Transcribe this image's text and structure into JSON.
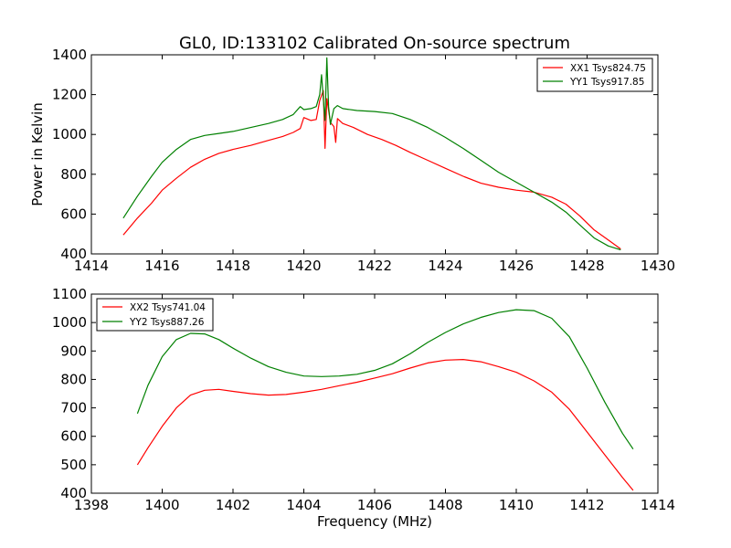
{
  "chart_data": [
    {
      "type": "line",
      "title": "GL0, ID:133102 Calibrated On-source spectrum",
      "xlabel": "",
      "ylabel": "Power in Kelvin",
      "xlim": [
        1414,
        1430
      ],
      "ylim": [
        400,
        1400
      ],
      "xticks": [
        1414,
        1416,
        1418,
        1420,
        1422,
        1424,
        1426,
        1428,
        1430
      ],
      "yticks": [
        400,
        600,
        800,
        1000,
        1200,
        1400
      ],
      "legend_position": "top-right",
      "grid": false,
      "series": [
        {
          "name": "XX1 Tsys824.75",
          "color": "#ff0000",
          "x": [
            1414.9,
            1415.3,
            1415.7,
            1416.0,
            1416.4,
            1416.8,
            1417.2,
            1417.6,
            1418.0,
            1418.5,
            1419.0,
            1419.4,
            1419.7,
            1419.9,
            1420.0,
            1420.2,
            1420.35,
            1420.45,
            1420.55,
            1420.6,
            1420.65,
            1420.75,
            1420.85,
            1420.9,
            1420.95,
            1421.1,
            1421.4,
            1421.8,
            1422.2,
            1422.6,
            1423.0,
            1423.5,
            1424.0,
            1424.5,
            1425.0,
            1425.5,
            1426.0,
            1426.5,
            1427.0,
            1427.4,
            1427.8,
            1428.2,
            1428.6,
            1428.95
          ],
          "y": [
            495,
            580,
            655,
            720,
            780,
            835,
            875,
            905,
            925,
            945,
            970,
            990,
            1010,
            1030,
            1085,
            1070,
            1075,
            1170,
            1220,
            930,
            1180,
            1060,
            1040,
            960,
            1080,
            1055,
            1035,
            1000,
            975,
            945,
            910,
            870,
            830,
            790,
            755,
            735,
            720,
            710,
            685,
            650,
            590,
            520,
            470,
            425
          ]
        },
        {
          "name": "YY1 Tsys917.85",
          "color": "#008000",
          "x": [
            1414.9,
            1415.3,
            1415.7,
            1416.0,
            1416.4,
            1416.8,
            1417.2,
            1417.6,
            1418.0,
            1418.5,
            1419.0,
            1419.4,
            1419.7,
            1419.9,
            1420.0,
            1420.2,
            1420.35,
            1420.45,
            1420.5,
            1420.55,
            1420.6,
            1420.65,
            1420.7,
            1420.75,
            1420.85,
            1420.95,
            1421.1,
            1421.5,
            1422.0,
            1422.5,
            1423.0,
            1423.5,
            1424.0,
            1424.5,
            1425.0,
            1425.5,
            1426.0,
            1426.5,
            1427.0,
            1427.4,
            1427.8,
            1428.2,
            1428.6,
            1428.95
          ],
          "y": [
            580,
            690,
            790,
            860,
            925,
            975,
            995,
            1005,
            1015,
            1035,
            1055,
            1075,
            1100,
            1140,
            1125,
            1130,
            1140,
            1200,
            1300,
            1180,
            1070,
            1385,
            1140,
            1050,
            1130,
            1145,
            1130,
            1120,
            1115,
            1105,
            1075,
            1035,
            985,
            930,
            870,
            810,
            760,
            710,
            660,
            610,
            545,
            480,
            440,
            420
          ]
        }
      ]
    },
    {
      "type": "line",
      "title": "",
      "xlabel": "Frequency (MHz)",
      "ylabel": "",
      "xlim": [
        1398,
        1414
      ],
      "ylim": [
        400,
        1100
      ],
      "xticks": [
        1398,
        1400,
        1402,
        1404,
        1406,
        1408,
        1410,
        1412,
        1414
      ],
      "yticks": [
        400,
        500,
        600,
        700,
        800,
        900,
        1000,
        1100
      ],
      "legend_position": "top-left",
      "grid": false,
      "series": [
        {
          "name": "XX2 Tsys741.04",
          "color": "#ff0000",
          "x": [
            1399.3,
            1399.6,
            1400.0,
            1400.4,
            1400.8,
            1401.2,
            1401.6,
            1402.0,
            1402.5,
            1403.0,
            1403.5,
            1404.0,
            1404.5,
            1405.0,
            1405.5,
            1406.0,
            1406.5,
            1407.0,
            1407.5,
            1408.0,
            1408.5,
            1409.0,
            1409.5,
            1410.0,
            1410.5,
            1411.0,
            1411.5,
            1412.0,
            1412.5,
            1413.0,
            1413.3
          ],
          "y": [
            500,
            560,
            635,
            700,
            745,
            762,
            765,
            758,
            750,
            745,
            747,
            755,
            765,
            778,
            790,
            805,
            820,
            840,
            858,
            868,
            870,
            862,
            845,
            825,
            795,
            755,
            695,
            615,
            535,
            455,
            410
          ]
        },
        {
          "name": "YY2 Tsys887.26",
          "color": "#008000",
          "x": [
            1399.3,
            1399.6,
            1400.0,
            1400.4,
            1400.8,
            1401.2,
            1401.6,
            1402.0,
            1402.5,
            1403.0,
            1403.5,
            1404.0,
            1404.5,
            1405.0,
            1405.5,
            1406.0,
            1406.5,
            1407.0,
            1407.5,
            1408.0,
            1408.5,
            1409.0,
            1409.5,
            1410.0,
            1410.5,
            1411.0,
            1411.5,
            1412.0,
            1412.5,
            1413.0,
            1413.3
          ],
          "y": [
            680,
            780,
            880,
            940,
            962,
            960,
            940,
            910,
            875,
            845,
            825,
            812,
            810,
            812,
            818,
            832,
            855,
            890,
            930,
            965,
            995,
            1018,
            1035,
            1045,
            1042,
            1015,
            950,
            840,
            720,
            610,
            555
          ]
        }
      ]
    }
  ]
}
